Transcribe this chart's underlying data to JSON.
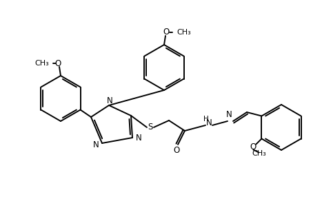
{
  "bg_color": "#ffffff",
  "lw": 1.4,
  "fs": 8.5,
  "figsize": [
    4.67,
    2.92
  ],
  "dpi": 100,
  "xlim": [
    0,
    467
  ],
  "ylim": [
    0,
    292
  ]
}
